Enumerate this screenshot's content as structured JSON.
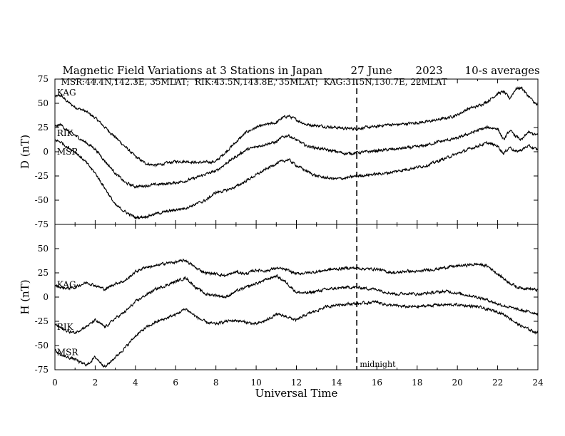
{
  "header": {
    "title": "Magnetic Field Variations at 3 Stations in Japan",
    "date": "27 June",
    "year": "2023",
    "averaging": "10-s averages",
    "stations": "MSR:44.4N,142.3E, 35MLAT;  RIK:43.5N,143.8E, 35MLAT;  KAG:31.5N,130.7E, 22MLAT"
  },
  "chart_data": [
    {
      "type": "line",
      "panel": "D",
      "ylabel": "D (nT)",
      "xlabel": "",
      "xlim": [
        0,
        24
      ],
      "ylim": [
        -75,
        75
      ],
      "yticks": [
        75,
        50,
        25,
        0,
        -25,
        -50,
        -75
      ],
      "grid": false,
      "series": [
        {
          "name": "KAG",
          "x": [
            0,
            0.3,
            0.6,
            1,
            1.5,
            2,
            2.5,
            3,
            3.5,
            4,
            4.5,
            5,
            5.5,
            6,
            6.5,
            7,
            7.5,
            8,
            8.5,
            9,
            9.5,
            10,
            10.5,
            11,
            11.3,
            11.6,
            12,
            12.5,
            13,
            13.5,
            14,
            14.5,
            15,
            15.5,
            16,
            16.5,
            17,
            17.5,
            18,
            18.5,
            19,
            19.5,
            20,
            20.5,
            21,
            21.5,
            22,
            22.3,
            22.6,
            22.9,
            23.2,
            23.5,
            24
          ],
          "y": [
            57,
            58,
            52,
            46,
            42,
            35,
            25,
            15,
            5,
            -5,
            -12,
            -14,
            -12,
            -10,
            -10,
            -11,
            -11,
            -10,
            0,
            10,
            20,
            25,
            28,
            30,
            35,
            37,
            33,
            28,
            27,
            26,
            25,
            24,
            24,
            25,
            26,
            28,
            28,
            29,
            30,
            31,
            33,
            35,
            38,
            44,
            47,
            52,
            60,
            62,
            55,
            65,
            66,
            58,
            47
          ]
        },
        {
          "name": "RIK",
          "x": [
            0,
            0.3,
            0.6,
            1,
            1.5,
            2,
            2.5,
            3,
            3.5,
            4,
            4.5,
            5,
            5.5,
            6,
            6.5,
            7,
            7.5,
            8,
            8.5,
            9,
            9.5,
            10,
            10.5,
            11,
            11.3,
            11.6,
            12,
            12.5,
            13,
            13.5,
            14,
            14.5,
            15,
            15.5,
            16,
            16.5,
            17,
            17.5,
            18,
            18.5,
            19,
            19.5,
            20,
            20.5,
            21,
            21.5,
            22,
            22.3,
            22.6,
            22.9,
            23.2,
            23.5,
            24
          ],
          "y": [
            26,
            28,
            22,
            17,
            10,
            3,
            -10,
            -22,
            -32,
            -36,
            -35,
            -34,
            -33,
            -32,
            -30,
            -27,
            -23,
            -20,
            -12,
            -5,
            2,
            5,
            8,
            10,
            15,
            17,
            12,
            6,
            4,
            2,
            0,
            -2,
            -1,
            0,
            1,
            2,
            3,
            4,
            5,
            7,
            10,
            12,
            14,
            18,
            22,
            25,
            24,
            12,
            22,
            16,
            12,
            20,
            17
          ]
        },
        {
          "name": "MSR",
          "x": [
            0,
            0.3,
            0.6,
            1,
            1.5,
            2,
            2.5,
            3,
            3.5,
            4,
            4.5,
            5,
            5.5,
            6,
            6.5,
            7,
            7.5,
            8,
            8.5,
            9,
            9.5,
            10,
            10.5,
            11,
            11.3,
            11.6,
            12,
            12.5,
            13,
            13.5,
            14,
            14.5,
            15,
            15.5,
            16,
            16.5,
            17,
            17.5,
            18,
            18.5,
            19,
            19.5,
            20,
            20.5,
            21,
            21.5,
            22,
            22.3,
            22.6,
            22.9,
            23.2,
            23.5,
            24
          ],
          "y": [
            12,
            10,
            5,
            0,
            -10,
            -22,
            -38,
            -55,
            -62,
            -68,
            -67,
            -64,
            -62,
            -60,
            -58,
            -54,
            -50,
            -42,
            -40,
            -36,
            -30,
            -24,
            -18,
            -12,
            -10,
            -8,
            -14,
            -20,
            -25,
            -27,
            -28,
            -27,
            -25,
            -24,
            -23,
            -22,
            -20,
            -18,
            -16,
            -14,
            -10,
            -6,
            -2,
            2,
            6,
            9,
            6,
            -2,
            5,
            0,
            2,
            6,
            2
          ]
        }
      ],
      "annotations": [
        {
          "text": "KAG",
          "x": 0.1,
          "y": 61
        },
        {
          "text": "RIK",
          "x": 0.1,
          "y": 19
        },
        {
          "text": "MSR",
          "x": 0.1,
          "y": 0
        }
      ]
    },
    {
      "type": "line",
      "panel": "H",
      "ylabel": "H (nT)",
      "xlabel": "Universal Time",
      "xlim": [
        0,
        24
      ],
      "ylim": [
        -75,
        75
      ],
      "yticks": [
        75,
        50,
        25,
        0,
        -25,
        -50,
        -75
      ],
      "xticks": [
        0,
        2,
        4,
        6,
        8,
        10,
        12,
        14,
        16,
        18,
        20,
        22,
        24
      ],
      "grid": false,
      "series": [
        {
          "name": "KAG",
          "x": [
            0,
            0.3,
            0.6,
            1,
            1.3,
            1.6,
            2,
            2.5,
            3,
            3.5,
            4,
            4.5,
            5,
            5.5,
            6,
            6.5,
            7,
            7.5,
            8,
            8.5,
            9,
            9.5,
            10,
            10.5,
            11,
            11.5,
            12,
            12.5,
            13,
            13.5,
            14,
            14.5,
            15,
            15.5,
            16,
            16.5,
            17,
            17.5,
            18,
            18.5,
            19,
            19.5,
            20,
            20.5,
            21,
            21.5,
            22,
            22.5,
            23,
            23.5,
            24
          ],
          "y": [
            12,
            10,
            9,
            10,
            13,
            15,
            12,
            8,
            14,
            17,
            26,
            31,
            32,
            35,
            36,
            38,
            30,
            25,
            24,
            22,
            26,
            24,
            28,
            27,
            30,
            28,
            24,
            25,
            26,
            28,
            29,
            30,
            30,
            29,
            29,
            26,
            25,
            27,
            26,
            28,
            29,
            31,
            32,
            33,
            34,
            32,
            24,
            16,
            10,
            9,
            7
          ]
        },
        {
          "name": "RIK",
          "x": [
            0,
            0.3,
            0.6,
            1,
            1.3,
            1.6,
            2,
            2.5,
            3,
            3.5,
            4,
            4.5,
            5,
            5.5,
            6,
            6.5,
            7,
            7.5,
            8,
            8.5,
            9,
            9.5,
            10,
            10.5,
            11,
            11.5,
            12,
            12.5,
            13,
            13.5,
            14,
            14.5,
            15,
            15.5,
            16,
            16.5,
            17,
            17.5,
            18,
            18.5,
            19,
            19.5,
            20,
            20.5,
            21,
            21.5,
            22,
            22.5,
            23,
            23.5,
            24
          ],
          "y": [
            -28,
            -32,
            -35,
            -37,
            -33,
            -30,
            -24,
            -31,
            -22,
            -15,
            -5,
            2,
            8,
            12,
            16,
            20,
            10,
            3,
            2,
            0,
            6,
            10,
            14,
            18,
            22,
            15,
            5,
            4,
            6,
            8,
            9,
            10,
            10,
            9,
            8,
            5,
            3,
            4,
            3,
            4,
            5,
            6,
            4,
            2,
            0,
            -3,
            -7,
            -10,
            -13,
            -15,
            -17
          ]
        },
        {
          "name": "MSR",
          "x": [
            0,
            0.3,
            0.6,
            1,
            1.3,
            1.6,
            2,
            2.5,
            3,
            3.5,
            4,
            4.5,
            5,
            5.5,
            6,
            6.5,
            7,
            7.5,
            8,
            8.5,
            9,
            9.5,
            10,
            10.5,
            11,
            11.5,
            12,
            12.5,
            13,
            13.5,
            14,
            14.5,
            15,
            15.5,
            16,
            16.5,
            17,
            17.5,
            18,
            18.5,
            19,
            19.5,
            20,
            20.5,
            21,
            21.5,
            22,
            22.5,
            23,
            23.5,
            24
          ],
          "y": [
            -55,
            -60,
            -62,
            -64,
            -68,
            -70,
            -62,
            -72,
            -62,
            -52,
            -40,
            -32,
            -26,
            -22,
            -18,
            -12,
            -20,
            -26,
            -28,
            -25,
            -24,
            -26,
            -28,
            -24,
            -18,
            -20,
            -24,
            -18,
            -14,
            -10,
            -8,
            -7,
            -7,
            -6,
            -5,
            -8,
            -9,
            -10,
            -10,
            -9,
            -8,
            -8,
            -8,
            -9,
            -10,
            -13,
            -15,
            -20,
            -28,
            -33,
            -37
          ]
        }
      ],
      "annotations": [
        {
          "text": "KAG",
          "x": 0.1,
          "y": 13
        },
        {
          "text": "RIK",
          "x": 0.1,
          "y": -31
        },
        {
          "text": "MSR",
          "x": 0.1,
          "y": -57
        },
        {
          "text": "midnight",
          "x": 15.15,
          "y": -69
        }
      ]
    }
  ],
  "midnight_ut": 15
}
